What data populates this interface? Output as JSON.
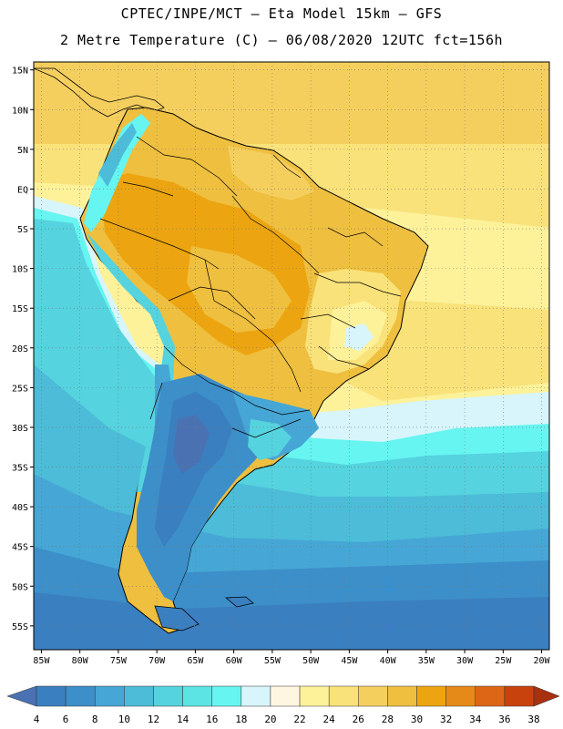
{
  "header": {
    "line1": "CPTEC/INPE/MCT –  Eta Model 15km – GFS",
    "line2": "2 Metre Temperature (C) – 06/08/2020 12UTC fct=156h"
  },
  "map": {
    "lat_labels": [
      "15N",
      "10N",
      "5N",
      "EQ",
      "5S",
      "10S",
      "15S",
      "20S",
      "25S",
      "30S",
      "35S",
      "40S",
      "45S",
      "50S",
      "55S"
    ],
    "lon_labels": [
      "85W",
      "80W",
      "75W",
      "70W",
      "65W",
      "60W",
      "55W",
      "50W",
      "45W",
      "40W",
      "35W",
      "30W",
      "25W",
      "20W"
    ],
    "lon_range": [
      -86,
      -19
    ],
    "lat_range": [
      -58,
      16
    ],
    "grid": true
  },
  "colorbar": {
    "labels": [
      "4",
      "6",
      "8",
      "10",
      "12",
      "14",
      "16",
      "18",
      "20",
      "22",
      "24",
      "26",
      "28",
      "30",
      "32",
      "34",
      "36",
      "38"
    ],
    "colors": [
      "#4a72b2",
      "#3a7fc0",
      "#3c8fc9",
      "#46a6d5",
      "#4cbcd8",
      "#55d3de",
      "#5ce4e4",
      "#66f5f1",
      "#d7f5fb",
      "#fff6e2",
      "#fdf29a",
      "#f9e27a",
      "#f5cf5e",
      "#efbf3f",
      "#eca510",
      "#e58a18",
      "#dd6616",
      "#c8420e",
      "#a7310f"
    ]
  }
}
